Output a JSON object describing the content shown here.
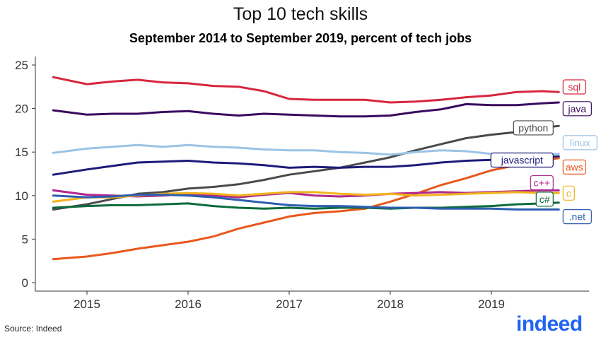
{
  "title": "Top 10 tech skills",
  "subtitle": "September 2014 to September 2019, percent of tech jobs",
  "source": "Source: Indeed",
  "logo_text": "indeed",
  "chart_data": {
    "type": "line",
    "title": "Top 10 tech skills",
    "subtitle": "September 2014 to September 2019, percent of tech jobs",
    "xlabel": "",
    "ylabel": "",
    "ylim": [
      0,
      25
    ],
    "xlim": [
      "2014-08",
      "2019-10"
    ],
    "yticks": [
      0,
      5,
      10,
      15,
      20,
      25
    ],
    "xticks": [
      "2015",
      "2016",
      "2017",
      "2018",
      "2019"
    ],
    "grid": false,
    "legend": "direct labels at right end of each line",
    "x": [
      "2014-09",
      "2015-01",
      "2015-04",
      "2015-07",
      "2015-10",
      "2016-01",
      "2016-04",
      "2016-07",
      "2016-10",
      "2017-01",
      "2017-04",
      "2017-07",
      "2017-10",
      "2018-01",
      "2018-04",
      "2018-07",
      "2018-10",
      "2019-01",
      "2019-04",
      "2019-07",
      "2019-09"
    ],
    "series": [
      {
        "name": "sql",
        "color": "#d7263d",
        "values": [
          23.6,
          22.8,
          23.1,
          23.3,
          23.0,
          22.9,
          22.6,
          22.5,
          22.0,
          21.1,
          21.0,
          21.0,
          21.0,
          20.7,
          20.8,
          21.0,
          21.3,
          21.5,
          21.9,
          22.0,
          21.9
        ]
      },
      {
        "name": "java",
        "color": "#3a0a5e",
        "values": [
          19.8,
          19.3,
          19.4,
          19.4,
          19.6,
          19.7,
          19.4,
          19.2,
          19.4,
          19.3,
          19.2,
          19.1,
          19.1,
          19.2,
          19.6,
          19.9,
          20.5,
          20.4,
          20.4,
          20.6,
          20.7
        ]
      },
      {
        "name": "python",
        "color": "#4a4a4a",
        "values": [
          8.4,
          9.0,
          9.6,
          10.2,
          10.4,
          10.8,
          11.0,
          11.3,
          11.8,
          12.4,
          12.8,
          13.2,
          13.8,
          14.4,
          15.2,
          15.9,
          16.6,
          17.0,
          17.3,
          17.8,
          18.0
        ]
      },
      {
        "name": "linux",
        "color": "#9cc3e6",
        "values": [
          14.9,
          15.4,
          15.6,
          15.8,
          15.6,
          15.8,
          15.6,
          15.5,
          15.3,
          15.2,
          15.2,
          15.0,
          14.9,
          14.7,
          15.0,
          15.2,
          15.1,
          14.8,
          14.6,
          14.7,
          14.8
        ]
      },
      {
        "name": "javascript",
        "color": "#1d1b7a",
        "values": [
          12.4,
          13.0,
          13.4,
          13.8,
          13.9,
          14.0,
          13.8,
          13.7,
          13.5,
          13.2,
          13.3,
          13.2,
          13.3,
          13.3,
          13.5,
          13.8,
          14.0,
          14.1,
          14.3,
          14.4,
          14.5
        ]
      },
      {
        "name": "aws",
        "color": "#e8581c",
        "values": [
          2.7,
          3.0,
          3.4,
          3.9,
          4.3,
          4.7,
          5.3,
          6.2,
          6.9,
          7.6,
          8.0,
          8.2,
          8.5,
          9.3,
          10.2,
          11.2,
          12.0,
          12.9,
          13.5,
          14.0,
          14.3
        ]
      },
      {
        "name": "c++",
        "color": "#b0288e",
        "values": [
          10.6,
          10.1,
          10.0,
          9.9,
          10.0,
          10.2,
          10.0,
          9.8,
          10.1,
          10.3,
          10.0,
          9.9,
          10.0,
          10.2,
          10.3,
          10.4,
          10.3,
          10.4,
          10.5,
          10.6,
          10.6
        ]
      },
      {
        "name": "c",
        "color": "#f0b31c",
        "values": [
          9.3,
          9.8,
          9.8,
          10.0,
          10.2,
          10.3,
          10.2,
          10.0,
          10.2,
          10.4,
          10.4,
          10.2,
          10.1,
          10.2,
          10.0,
          10.1,
          10.2,
          10.3,
          10.4,
          10.3,
          10.3
        ]
      },
      {
        "name": "c#",
        "color": "#0d6b3a",
        "values": [
          8.6,
          8.8,
          8.9,
          8.9,
          9.0,
          9.1,
          8.8,
          8.6,
          8.5,
          8.6,
          8.5,
          8.6,
          8.6,
          8.5,
          8.6,
          8.6,
          8.7,
          8.8,
          9.0,
          9.1,
          9.2
        ]
      },
      {
        "name": ".net",
        "color": "#2d5eb0",
        "values": [
          10.0,
          9.8,
          9.9,
          10.1,
          10.1,
          10.0,
          9.8,
          9.5,
          9.2,
          8.9,
          8.8,
          8.8,
          8.7,
          8.6,
          8.6,
          8.5,
          8.5,
          8.5,
          8.4,
          8.4,
          8.4
        ]
      }
    ],
    "end_labels": [
      {
        "name": "sql",
        "y_label": 22.4
      },
      {
        "name": "java",
        "y_label": 19.9
      },
      {
        "name": "python",
        "y_label": 17.7
      },
      {
        "name": "linux",
        "y_label": 16.0
      },
      {
        "name": "javascript",
        "y_label": 14.0
      },
      {
        "name": "aws",
        "y_label": 13.2
      },
      {
        "name": "c++",
        "y_label": 11.4
      },
      {
        "name": "c",
        "y_label": 10.2
      },
      {
        "name": "c#",
        "y_label": 9.5
      },
      {
        "name": ".net",
        "y_label": 7.5
      }
    ]
  }
}
